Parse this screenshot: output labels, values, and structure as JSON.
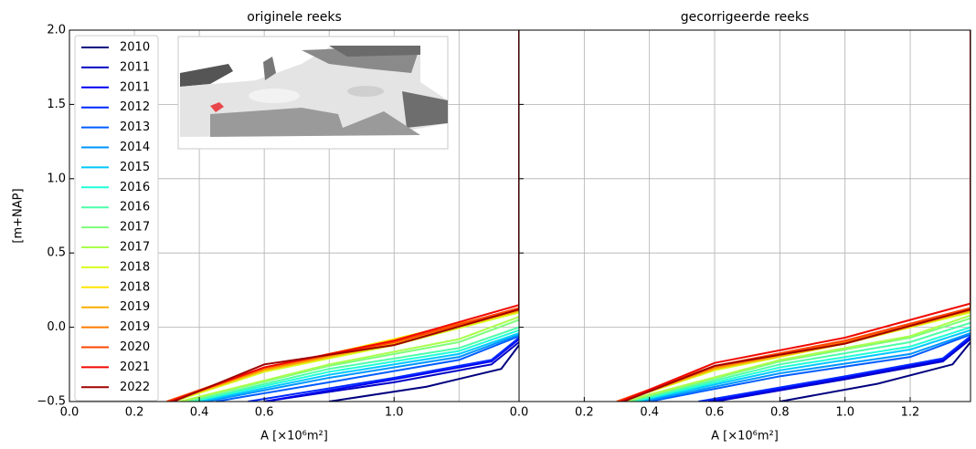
{
  "chart_data": [
    {
      "type": "line",
      "title": "originele reeks",
      "x_label": "A [×10⁶m²]",
      "y_label": "[m+NAP]",
      "xlim": [
        0,
        1.385
      ],
      "ylim": [
        -0.5,
        2.0
      ],
      "xticks": [
        {
          "value": 0,
          "label": "0.0"
        },
        0.2,
        0.4,
        0.6,
        {
          "value": 1,
          "label": "1.0"
        }
      ],
      "xgrid": [
        0.8,
        1.2
      ],
      "yticks": [
        {
          "value": -0.5,
          "label": "−0.5"
        },
        {
          "value": 0,
          "label": "0.0"
        },
        0.5,
        {
          "value": 1,
          "label": "1.0"
        },
        1.5,
        {
          "value": 2,
          "label": "2.0"
        }
      ],
      "grid": true,
      "legend": "upper left",
      "series": [
        {
          "name": "2010",
          "color": "#00007f",
          "x": [
            0.8,
            1.1,
            1.33,
            1.385
          ],
          "values": [
            -0.5,
            -0.4,
            -0.28,
            -0.12
          ]
        },
        {
          "name": "2011",
          "color": "#0000c4",
          "x": [
            0.6,
            1.0,
            1.3,
            1.385
          ],
          "values": [
            -0.5,
            -0.37,
            -0.25,
            -0.1
          ]
        },
        {
          "name": "2011",
          "color": "#0000f1",
          "x": [
            0.6,
            1.0,
            1.3,
            1.385
          ],
          "values": [
            -0.5,
            -0.35,
            -0.23,
            -0.08
          ]
        },
        {
          "name": "2012",
          "color": "#0028ff",
          "x": [
            0.55,
            1.0,
            1.3,
            1.385
          ],
          "values": [
            -0.5,
            -0.34,
            -0.22,
            -0.07
          ]
        },
        {
          "name": "2013",
          "color": "#005cff",
          "x": [
            0.45,
            0.8,
            1.2,
            1.385
          ],
          "values": [
            -0.5,
            -0.37,
            -0.22,
            -0.06
          ]
        },
        {
          "name": "2014",
          "color": "#0094ff",
          "x": [
            0.42,
            0.8,
            1.2,
            1.385
          ],
          "values": [
            -0.5,
            -0.34,
            -0.2,
            -0.05
          ]
        },
        {
          "name": "2015",
          "color": "#00c8ff",
          "x": [
            0.4,
            0.8,
            1.2,
            1.385
          ],
          "values": [
            -0.5,
            -0.32,
            -0.18,
            -0.04
          ]
        },
        {
          "name": "2016",
          "color": "#1fffd7",
          "x": [
            0.38,
            0.8,
            1.2,
            1.385
          ],
          "values": [
            -0.5,
            -0.3,
            -0.16,
            -0.02
          ]
        },
        {
          "name": "2016",
          "color": "#4dffaa",
          "x": [
            0.37,
            0.8,
            1.2,
            1.385
          ],
          "values": [
            -0.5,
            -0.28,
            -0.14,
            0.0
          ]
        },
        {
          "name": "2017",
          "color": "#7dff7a",
          "x": [
            0.35,
            0.8,
            1.2,
            1.385
          ],
          "values": [
            -0.5,
            -0.26,
            -0.1,
            0.05
          ]
        },
        {
          "name": "2017",
          "color": "#aaff4d",
          "x": [
            0.34,
            0.8,
            1.2,
            1.385
          ],
          "values": [
            -0.5,
            -0.25,
            -0.08,
            0.07
          ]
        },
        {
          "name": "2018",
          "color": "#d7ff1f",
          "x": [
            0.32,
            0.6,
            1.0,
            1.385
          ],
          "values": [
            -0.5,
            -0.3,
            -0.12,
            0.1
          ]
        },
        {
          "name": "2018",
          "color": "#ffe600",
          "x": [
            0.3,
            0.6,
            1.0,
            1.385
          ],
          "values": [
            -0.5,
            -0.28,
            -0.08,
            0.12
          ]
        },
        {
          "name": "2019",
          "color": "#ffae00",
          "x": [
            0.31,
            0.6,
            1.0,
            1.385
          ],
          "values": [
            -0.5,
            -0.29,
            -0.11,
            0.11
          ]
        },
        {
          "name": "2019",
          "color": "#ff7a00",
          "x": [
            0.3,
            0.6,
            1.0,
            1.385
          ],
          "values": [
            -0.5,
            -0.28,
            -0.1,
            0.12
          ]
        },
        {
          "name": "2020",
          "color": "#ff4600",
          "x": [
            0.3,
            0.6,
            1.0,
            1.385
          ],
          "values": [
            -0.5,
            -0.27,
            -0.1,
            0.13
          ]
        },
        {
          "name": "2021",
          "color": "#f10800",
          "x": [
            0.31,
            0.6,
            1.0,
            1.385
          ],
          "values": [
            -0.5,
            -0.27,
            -0.09,
            0.15
          ]
        },
        {
          "name": "2022",
          "color": "#a00000",
          "x": [
            0.32,
            0.6,
            1.0,
            1.385,
            1.385
          ],
          "values": [
            -0.5,
            -0.25,
            -0.12,
            0.12,
            2.0
          ]
        }
      ]
    },
    {
      "type": "line",
      "title": "gecorrigeerde reeks",
      "x_label": "A [×10⁶m²]",
      "xlim": [
        0,
        1.385
      ],
      "ylim": [
        -0.5,
        2.0
      ],
      "xticks": [
        {
          "value": 0,
          "label": "0.0"
        },
        0.2,
        0.4,
        0.6,
        0.8,
        {
          "value": 1,
          "label": "1.0"
        },
        1.2
      ],
      "yticks": [
        -0.5,
        0,
        0.5,
        1,
        1.5,
        2
      ],
      "grid": true,
      "series": [
        {
          "color": "#00007f",
          "x": [
            0.8,
            1.1,
            1.33,
            1.385
          ],
          "values": [
            -0.5,
            -0.38,
            -0.25,
            -0.1
          ]
        },
        {
          "color": "#0000c4",
          "x": [
            0.6,
            1.0,
            1.3,
            1.385
          ],
          "values": [
            -0.5,
            -0.35,
            -0.23,
            -0.08
          ]
        },
        {
          "color": "#0000f1",
          "x": [
            0.58,
            1.0,
            1.3,
            1.385
          ],
          "values": [
            -0.5,
            -0.34,
            -0.22,
            -0.07
          ]
        },
        {
          "color": "#0028ff",
          "x": [
            0.55,
            1.0,
            1.3,
            1.385
          ],
          "values": [
            -0.5,
            -0.33,
            -0.21,
            -0.06
          ]
        },
        {
          "color": "#005cff",
          "x": [
            0.4,
            0.8,
            1.2,
            1.385
          ],
          "values": [
            -0.5,
            -0.33,
            -0.2,
            -0.05
          ]
        },
        {
          "color": "#0094ff",
          "x": [
            0.38,
            0.8,
            1.2,
            1.385
          ],
          "values": [
            -0.5,
            -0.31,
            -0.18,
            -0.04
          ]
        },
        {
          "color": "#00c8ff",
          "x": [
            0.36,
            0.8,
            1.2,
            1.385
          ],
          "values": [
            -0.5,
            -0.29,
            -0.15,
            -0.02
          ]
        },
        {
          "color": "#1fffd7",
          "x": [
            0.35,
            0.8,
            1.2,
            1.385
          ],
          "values": [
            -0.5,
            -0.27,
            -0.13,
            0.0
          ]
        },
        {
          "color": "#4dffaa",
          "x": [
            0.34,
            0.8,
            1.2,
            1.385
          ],
          "values": [
            -0.5,
            -0.25,
            -0.1,
            0.03
          ]
        },
        {
          "color": "#7dff7a",
          "x": [
            0.33,
            0.8,
            1.2,
            1.385
          ],
          "values": [
            -0.5,
            -0.23,
            -0.07,
            0.06
          ]
        },
        {
          "color": "#aaff4d",
          "x": [
            0.32,
            0.8,
            1.2,
            1.385
          ],
          "values": [
            -0.5,
            -0.22,
            -0.06,
            0.08
          ]
        },
        {
          "color": "#d7ff1f",
          "x": [
            0.31,
            0.6,
            1.0,
            1.385
          ],
          "values": [
            -0.5,
            -0.29,
            -0.11,
            0.1
          ]
        },
        {
          "color": "#ffe600",
          "x": [
            0.3,
            0.6,
            1.0,
            1.385
          ],
          "values": [
            -0.5,
            -0.28,
            -0.1,
            0.12
          ]
        },
        {
          "color": "#ffae00",
          "x": [
            0.31,
            0.6,
            1.0,
            1.385
          ],
          "values": [
            -0.5,
            -0.28,
            -0.11,
            0.11
          ]
        },
        {
          "color": "#ff7a00",
          "x": [
            0.3,
            0.6,
            1.0,
            1.385
          ],
          "values": [
            -0.5,
            -0.27,
            -0.1,
            0.12
          ]
        },
        {
          "color": "#ff4600",
          "x": [
            0.3,
            0.6,
            1.0,
            1.385
          ],
          "values": [
            -0.5,
            -0.26,
            -0.09,
            0.13
          ]
        },
        {
          "color": "#f10800",
          "x": [
            0.31,
            0.6,
            1.0,
            1.385
          ],
          "values": [
            -0.5,
            -0.24,
            -0.07,
            0.16
          ]
        },
        {
          "color": "#a00000",
          "x": [
            0.32,
            0.6,
            1.0,
            1.385,
            1.385
          ],
          "values": [
            -0.5,
            -0.26,
            -0.11,
            0.12,
            2.0
          ]
        }
      ]
    }
  ]
}
